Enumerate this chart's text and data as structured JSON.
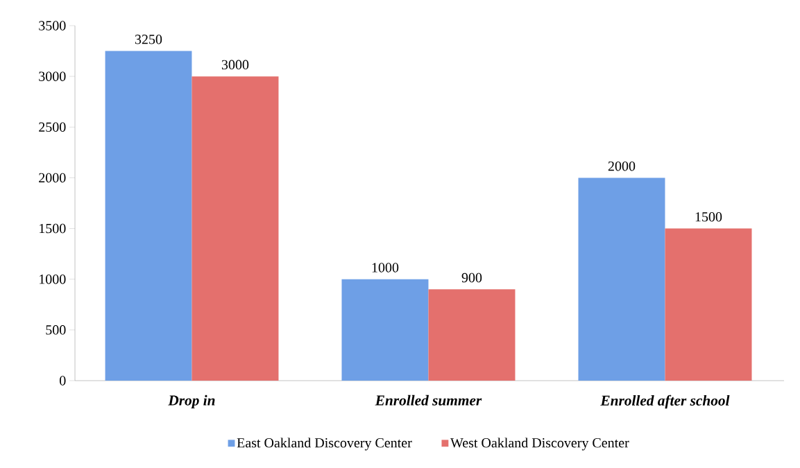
{
  "chart_data": {
    "type": "bar",
    "categories": [
      "Drop in",
      "Enrolled summer",
      "Enrolled after school"
    ],
    "series": [
      {
        "name": "East Oakland Discovery Center",
        "color": "#6e9fe6",
        "values": [
          3250,
          1000,
          2000
        ]
      },
      {
        "name": "West Oakland Discovery Center",
        "color": "#e4706d",
        "values": [
          3000,
          900,
          1500
        ]
      }
    ],
    "ylim": [
      0,
      3500
    ],
    "yticks": [
      0,
      500,
      1000,
      1500,
      2000,
      2500,
      3000,
      3500
    ],
    "data_labels": true,
    "grid": false,
    "legend": "bottom"
  }
}
